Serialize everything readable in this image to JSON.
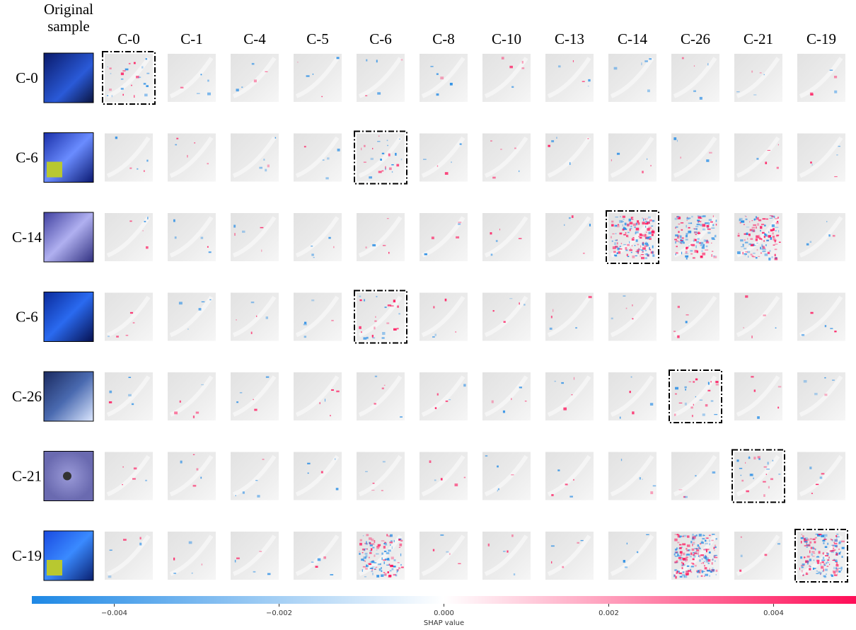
{
  "original_label": [
    "Original",
    "sample"
  ],
  "columns": [
    "C-0",
    "C-1",
    "C-4",
    "C-5",
    "C-6",
    "C-8",
    "C-10",
    "C-13",
    "C-14",
    "C-26",
    "C-21",
    "C-19"
  ],
  "rows": [
    "C-0",
    "C-6",
    "C-14",
    "C-6",
    "C-26",
    "C-21",
    "C-19"
  ],
  "colorbar": {
    "label": "SHAP value",
    "lim": [
      -0.005,
      0.005
    ],
    "ticks": [
      {
        "value": -0.004,
        "label": "−0.004"
      },
      {
        "value": -0.002,
        "label": "−0.002"
      },
      {
        "value": 0,
        "label": "0.000"
      },
      0.002,
      0.004
    ],
    "colors": [
      "#1e88e5",
      "#ffffff",
      "#ff0d57"
    ]
  }
}
